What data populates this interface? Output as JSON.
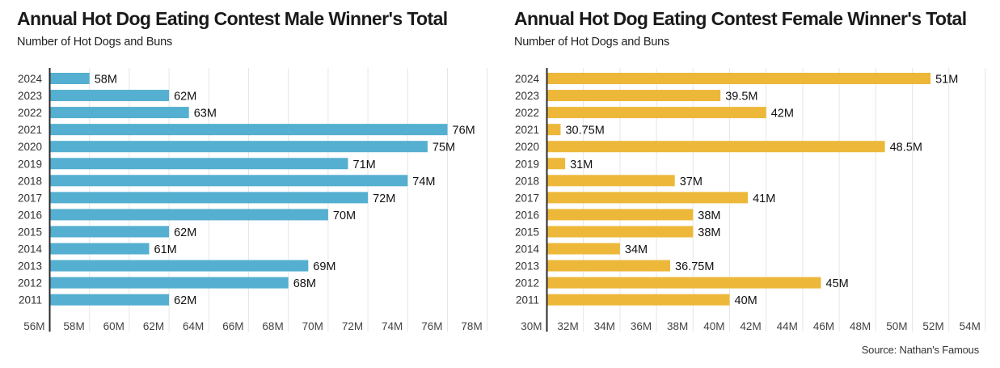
{
  "source": "Source: Nathan's Famous",
  "chart_data": [
    {
      "type": "bar",
      "orientation": "horizontal",
      "title": "Annual Hot Dog Eating Contest Male Winner's Total",
      "subtitle": "Number of Hot Dogs and Buns",
      "color": "#54afd0",
      "categories": [
        "2024",
        "2023",
        "2022",
        "2021",
        "2020",
        "2019",
        "2018",
        "2017",
        "2016",
        "2015",
        "2014",
        "2013",
        "2012",
        "2011"
      ],
      "values": [
        58,
        62,
        63,
        76,
        75,
        71,
        74,
        72,
        70,
        62,
        61,
        69,
        68,
        62
      ],
      "data_labels": [
        "58M",
        "62M",
        "63M",
        "76M",
        "75M",
        "71M",
        "74M",
        "72M",
        "70M",
        "62M",
        "61M",
        "69M",
        "68M",
        "62M"
      ],
      "xlim": [
        56,
        78
      ],
      "xticks": [
        56,
        58,
        60,
        62,
        64,
        66,
        68,
        70,
        72,
        74,
        76,
        78
      ],
      "xtick_labels": [
        "56M",
        "58M",
        "60M",
        "62M",
        "64M",
        "66M",
        "68M",
        "70M",
        "72M",
        "74M",
        "76M",
        "78M"
      ],
      "xlabel": "",
      "ylabel": "",
      "grid": true
    },
    {
      "type": "bar",
      "orientation": "horizontal",
      "title": "Annual Hot Dog Eating Contest Female Winner's Total",
      "subtitle": "Number of Hot Dogs and Buns",
      "color": "#edb83a",
      "categories": [
        "2024",
        "2023",
        "2022",
        "2021",
        "2020",
        "2019",
        "2018",
        "2017",
        "2016",
        "2015",
        "2014",
        "2013",
        "2012",
        "2011"
      ],
      "values": [
        51,
        39.5,
        42,
        30.75,
        48.5,
        31,
        37,
        41,
        38,
        38,
        34,
        36.75,
        45,
        40
      ],
      "data_labels": [
        "51M",
        "39.5M",
        "42M",
        "30.75M",
        "48.5M",
        "31M",
        "37M",
        "41M",
        "38M",
        "38M",
        "34M",
        "36.75M",
        "45M",
        "40M"
      ],
      "xlim": [
        30,
        54
      ],
      "xticks": [
        30,
        32,
        34,
        36,
        38,
        40,
        42,
        44,
        46,
        48,
        50,
        52,
        54
      ],
      "xtick_labels": [
        "30M",
        "32M",
        "34M",
        "36M",
        "38M",
        "40M",
        "42M",
        "44M",
        "46M",
        "48M",
        "50M",
        "52M",
        "54M"
      ],
      "xlabel": "",
      "ylabel": "",
      "grid": true
    }
  ]
}
